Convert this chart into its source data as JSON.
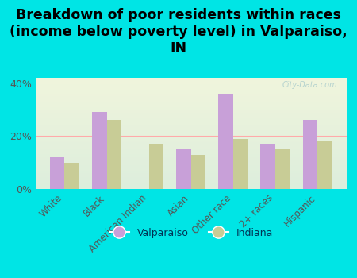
{
  "title": "Breakdown of poor residents within races\n(income below poverty level) in Valparaiso,\nIN",
  "categories": [
    "White",
    "Black",
    "American Indian",
    "Asian",
    "Other race",
    "2+ races",
    "Hispanic"
  ],
  "valparaiso": [
    12,
    29,
    0,
    15,
    36,
    17,
    26
  ],
  "indiana": [
    10,
    26,
    17,
    13,
    19,
    15,
    18
  ],
  "valparaiso_color": "#c8a0d8",
  "indiana_color": "#c8cc96",
  "background_color": "#00e5e5",
  "ylim": [
    0,
    42
  ],
  "yticks": [
    0,
    20,
    40
  ],
  "ytick_labels": [
    "0%",
    "20%",
    "40%"
  ],
  "watermark": "City-Data.com",
  "legend_labels": [
    "Valparaiso",
    "Indiana"
  ],
  "title_fontsize": 12.5,
  "bar_width": 0.35
}
